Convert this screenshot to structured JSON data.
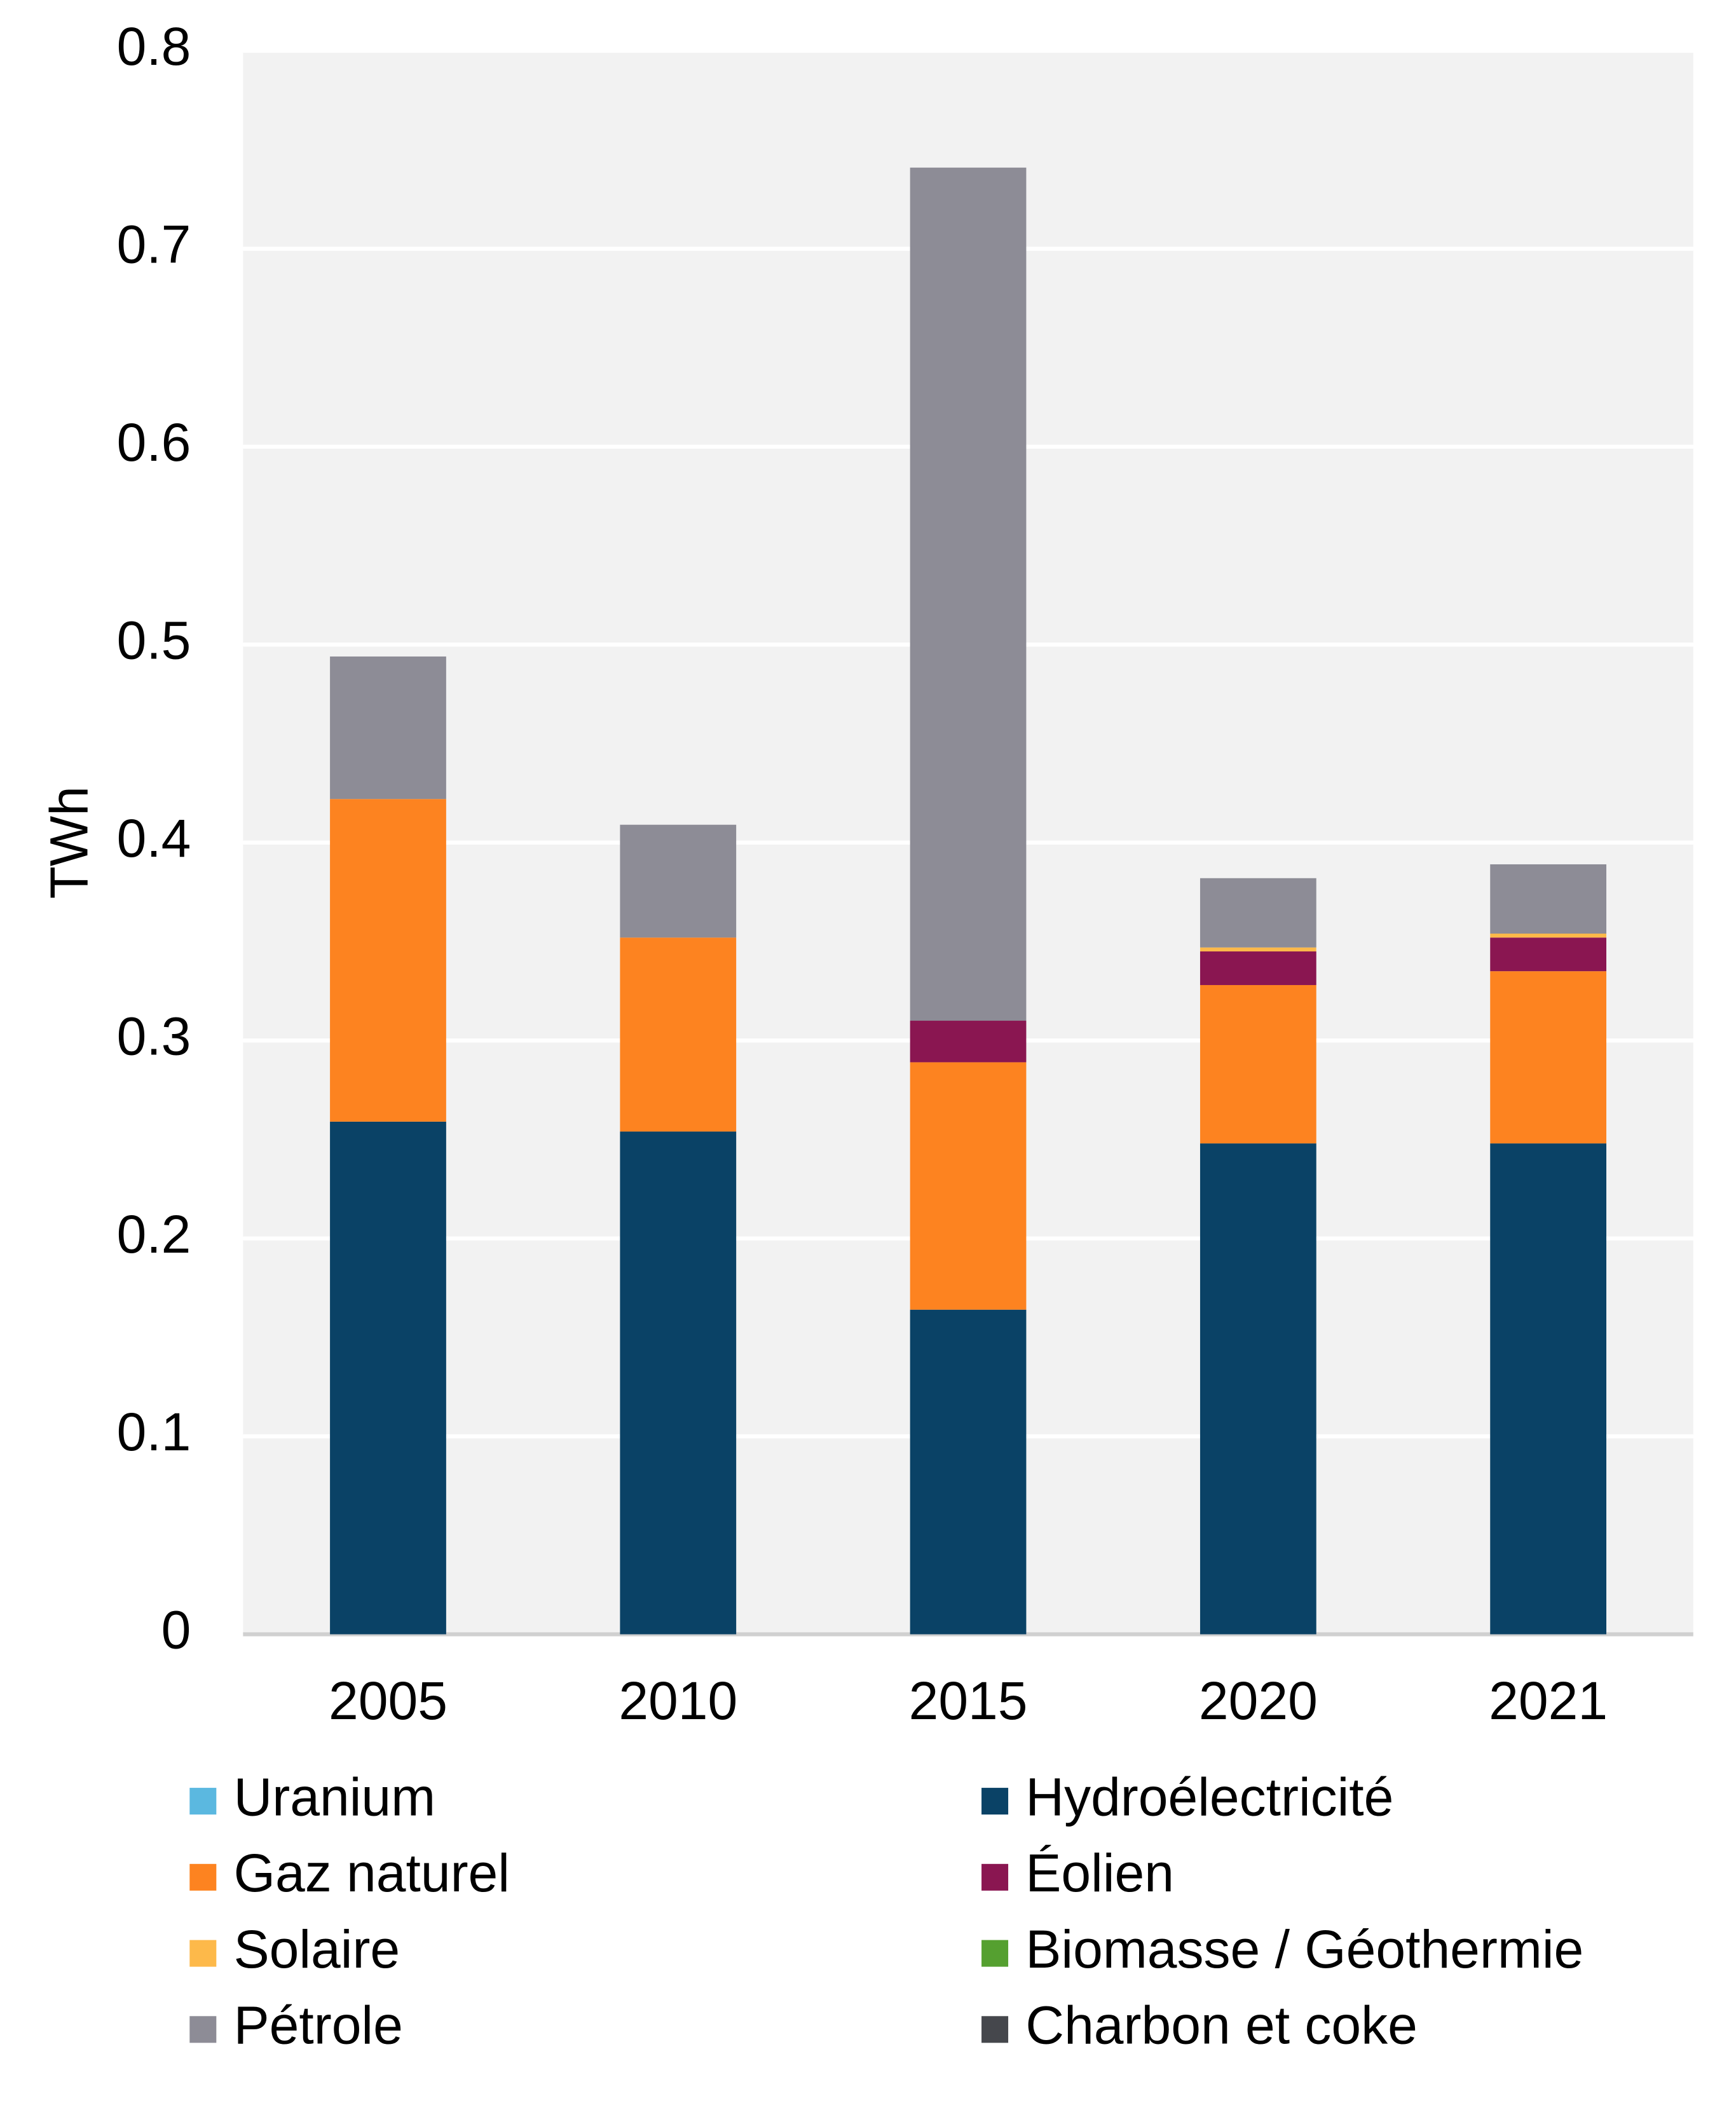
{
  "chart_data": {
    "type": "stacked_bar",
    "y_label": "TWh",
    "categories": [
      "2005",
      "2010",
      "2015",
      "2020",
      "2021"
    ],
    "series": [
      {
        "name": "Uranium",
        "color": "#5bb8e0",
        "values": [
          0,
          0,
          0,
          0,
          0
        ]
      },
      {
        "name": "Hydroélectricité",
        "color": "#0a4266",
        "values": [
          0.259,
          0.254,
          0.164,
          0.248,
          0.248
        ]
      },
      {
        "name": "Gaz naturel",
        "color": "#fd8320",
        "values": [
          0.163,
          0.098,
          0.125,
          0.08,
          0.087
        ]
      },
      {
        "name": "Éolien",
        "color": "#8a1651",
        "values": [
          0,
          0,
          0.021,
          0.017,
          0.017
        ]
      },
      {
        "name": "Solaire",
        "color": "#fdb94a",
        "values": [
          0,
          0,
          0,
          0.002,
          0.002
        ]
      },
      {
        "name": "Biomasse / Géothermie",
        "color": "#55a030",
        "values": [
          0,
          0,
          0,
          0,
          0
        ]
      },
      {
        "name": "Pétrole",
        "color": "#8d8c96",
        "values": [
          0.072,
          0.057,
          0.431,
          0.035,
          0.035
        ]
      },
      {
        "name": "Charbon et coke",
        "color": "#45474c",
        "values": [
          0,
          0,
          0,
          0,
          0
        ]
      }
    ],
    "ylim": [
      0,
      0.8
    ],
    "yticks": [
      0,
      0.1,
      0.2,
      0.3,
      0.4,
      0.5,
      0.6,
      0.7,
      0.8
    ],
    "grid": true,
    "legend": "bottom"
  }
}
